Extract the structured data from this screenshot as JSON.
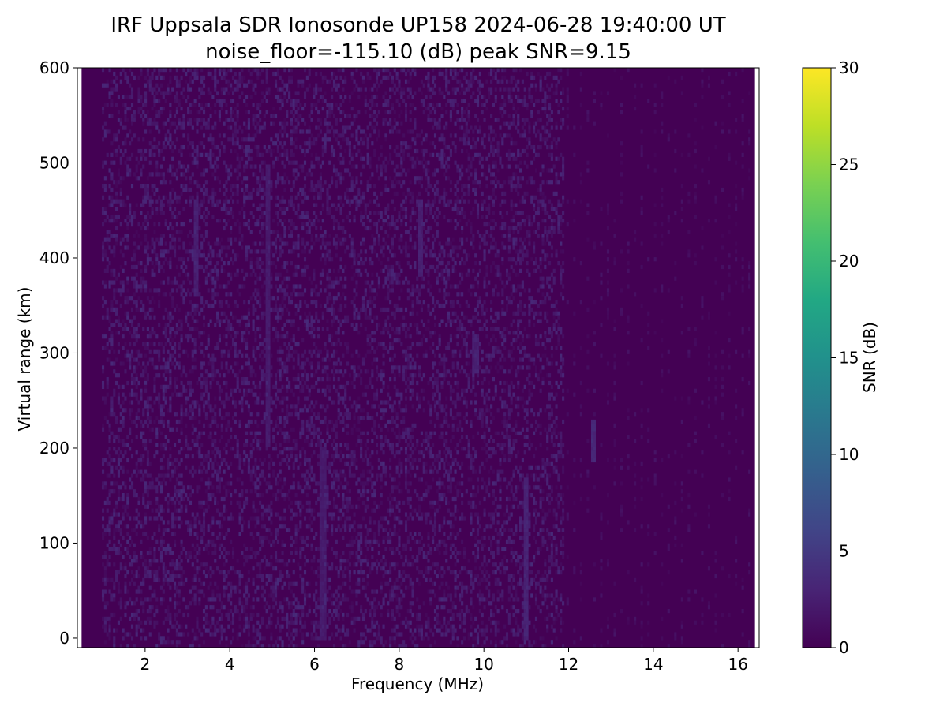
{
  "chart_data": {
    "type": "heatmap",
    "title": "IRF Uppsala SDR Ionosonde UP158 2024-06-28 19:40:00  UT",
    "subtitle": "noise_floor=-115.10 (dB) peak SNR=9.15",
    "xlabel": "Frequency (MHz)",
    "ylabel": "Virtual range (km)",
    "xlim": [
      0.4,
      16.5
    ],
    "ylim": [
      -10,
      600
    ],
    "x_data_range": [
      0.5,
      16.4
    ],
    "y_data_range": [
      -10,
      600
    ],
    "xticks": [
      2,
      4,
      6,
      8,
      10,
      12,
      14,
      16
    ],
    "yticks": [
      0,
      100,
      200,
      300,
      400,
      500,
      600
    ],
    "colorbar": {
      "label": "SNR (dB)",
      "range": [
        0,
        30
      ],
      "ticks": [
        0,
        5,
        10,
        15,
        20,
        25,
        30
      ],
      "colormap": "viridis"
    },
    "noise_floor_db": -115.1,
    "peak_snr_db": 9.15,
    "typical_snr_db": [
      0,
      3.5
    ],
    "quiet_bands_mhz": [
      [
        0.5,
        1.0
      ],
      [
        11.9,
        16.4
      ]
    ],
    "enhanced_features": [
      {
        "freq_mhz": 3.2,
        "range_km": [
          360,
          460
        ],
        "snr_db": 3
      },
      {
        "freq_mhz": 4.9,
        "range_km": [
          200,
          500
        ],
        "snr_db": 2.5
      },
      {
        "freq_mhz": 6.2,
        "range_km": [
          0,
          200
        ],
        "snr_db": 2.5
      },
      {
        "freq_mhz": 8.5,
        "range_km": [
          380,
          460
        ],
        "snr_db": 3
      },
      {
        "freq_mhz": 9.8,
        "range_km": [
          280,
          320
        ],
        "snr_db": 3
      },
      {
        "freq_mhz": 11.0,
        "range_km": [
          0,
          170
        ],
        "snr_db": 3.5
      },
      {
        "freq_mhz": 12.6,
        "range_km": [
          185,
          230
        ],
        "snr_db": 4
      }
    ],
    "grid": false
  },
  "colors": {
    "background": "#440154",
    "axis": "#000000"
  }
}
